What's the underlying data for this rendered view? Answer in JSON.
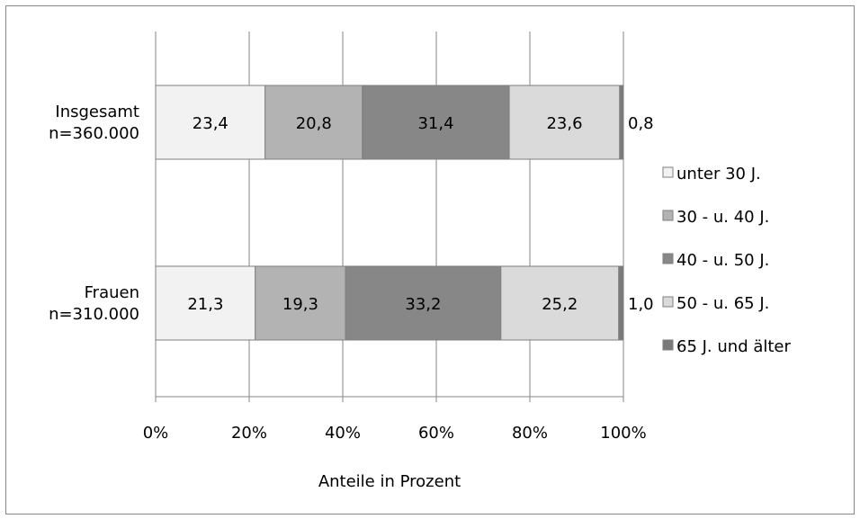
{
  "chart_data": {
    "type": "bar",
    "orientation": "horizontal",
    "stacked": true,
    "percent": true,
    "categories": [
      "Insgesamt\nn=360.000",
      "Frauen\nn=310.000"
    ],
    "series": [
      {
        "name": "unter 30 J.",
        "values": [
          23.4,
          21.3
        ],
        "labels": [
          "23,4",
          "21,3"
        ],
        "color": "#F2F2F2"
      },
      {
        "name": "30 - u. 40 J.",
        "values": [
          20.8,
          19.3
        ],
        "labels": [
          "20,8",
          "19,3"
        ],
        "color": "#B3B3B3"
      },
      {
        "name": "40 - u. 50 J.",
        "values": [
          31.4,
          33.2
        ],
        "labels": [
          "31,4",
          "33,2"
        ],
        "color": "#878787"
      },
      {
        "name": "50 - u. 65 J.",
        "values": [
          23.6,
          25.2
        ],
        "labels": [
          "23,6",
          "25,2"
        ],
        "color": "#DADADA"
      },
      {
        "name": "65 J. und älter",
        "values": [
          0.8,
          1.0
        ],
        "labels": [
          "0,8",
          "1,0"
        ],
        "color": "#7A7A7A"
      }
    ],
    "xlim": [
      0,
      100
    ],
    "xticks": [
      "0%",
      "20%",
      "40%",
      "60%",
      "80%",
      "100%"
    ],
    "xlabel": "Anteile in Prozent",
    "ylabel": "",
    "title": "",
    "grid": "vertical",
    "legend_position": "right"
  }
}
